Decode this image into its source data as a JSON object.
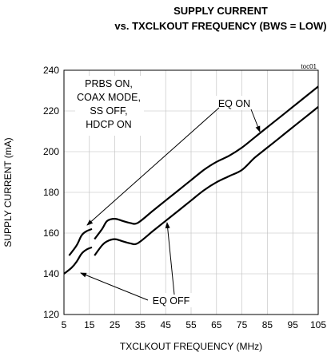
{
  "chart_data": {
    "type": "line",
    "title_line1": "SUPPLY CURRENT",
    "title_line2": "vs. TXCLKOUT FREQUENCY (BWS = LOW)",
    "figure_id": "toc01",
    "xlabel": "TXCLKOUT FREQUENCY (MHz)",
    "ylabel": "SUPPLY CURRENT (mA)",
    "xlim": [
      5,
      105
    ],
    "ylim": [
      120,
      240
    ],
    "xticks": [
      "5",
      "15",
      "25",
      "35",
      "45",
      "55",
      "65",
      "75",
      "85",
      "95",
      "105"
    ],
    "yticks": [
      "120",
      "140",
      "160",
      "180",
      "200",
      "220",
      "240"
    ],
    "conditions": [
      "PRBS ON,",
      "COAX MODE,",
      "SS OFF,",
      "HDCP ON"
    ],
    "series": [
      {
        "name": "EQ ON",
        "segments": [
          {
            "x": [
              7,
              10,
              12,
              14,
              16
            ],
            "y": [
              149,
              154,
              159,
              161,
              162
            ]
          },
          {
            "x": [
              17,
              20,
              22,
              25,
              28,
              31,
              34,
              40,
              45,
              50,
              55,
              60,
              65,
              70,
              75,
              80,
              85,
              90,
              95,
              100,
              105
            ],
            "y": [
              157,
              162,
              166,
              167,
              166,
              165,
              165,
              171,
              176,
              181,
              186,
              191,
              195,
              198,
              202,
              207,
              212,
              217,
              222,
              227,
              232
            ]
          }
        ]
      },
      {
        "name": "EQ OFF",
        "segments": [
          {
            "x": [
              5,
              8,
              10,
              12,
              14,
              16
            ],
            "y": [
              140,
              143,
              146,
              150,
              152,
              153
            ]
          },
          {
            "x": [
              17,
              20,
              22,
              25,
              28,
              31,
              34,
              40,
              45,
              50,
              55,
              60,
              65,
              70,
              75,
              80,
              85,
              90,
              95,
              100,
              105
            ],
            "y": [
              149,
              154,
              156,
              157,
              156,
              155,
              155,
              161,
              166,
              171,
              176,
              181,
              185,
              188,
              191,
              197,
              202,
              207,
              212,
              217,
              222
            ]
          }
        ]
      }
    ],
    "grid": true,
    "annotations": [
      {
        "text": "EQ ON",
        "series": "EQ ON"
      },
      {
        "text": "EQ OFF",
        "series": "EQ OFF"
      }
    ]
  }
}
